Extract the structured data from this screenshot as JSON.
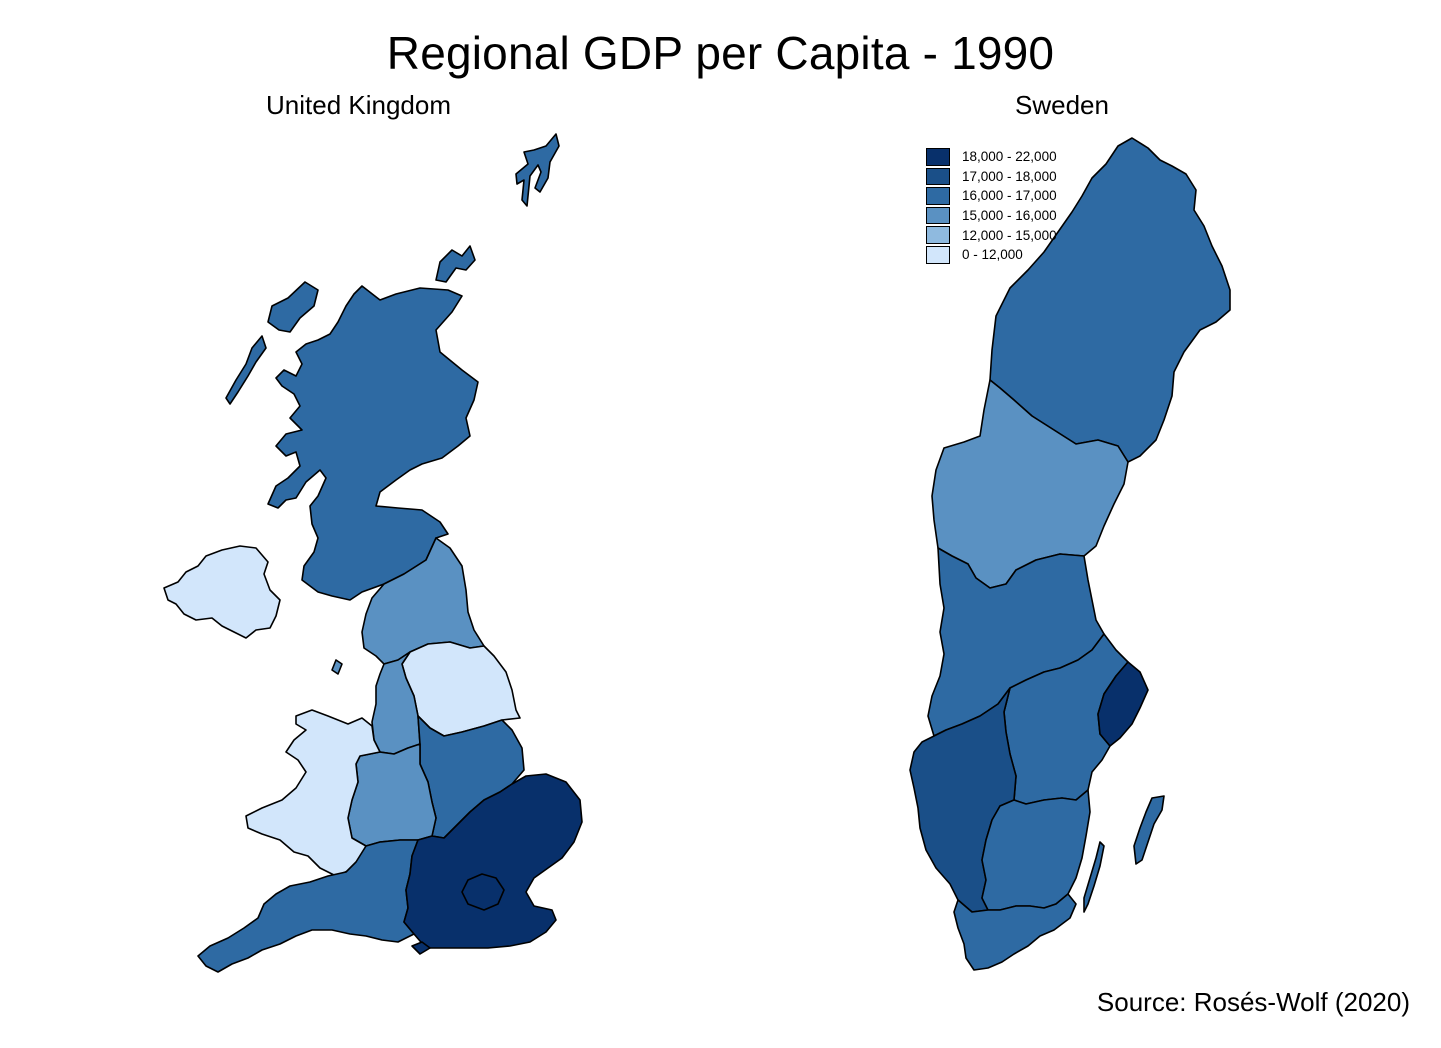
{
  "title": "Regional GDP per Capita - 1990",
  "panels": [
    {
      "label": "United Kingdom"
    },
    {
      "label": "Sweden"
    }
  ],
  "legend": [
    {
      "label": "18,000 - 22,000",
      "color": "#08306b"
    },
    {
      "label": "17,000 - 18,000",
      "color": "#1a4f88"
    },
    {
      "label": "16,000 - 17,000",
      "color": "#2e6aa3"
    },
    {
      "label": "15,000 - 16,000",
      "color": "#5a91c2"
    },
    {
      "label": "12,000 - 15,000",
      "color": "#8fbadf"
    },
    {
      "label": "0 - 12,000",
      "color": "#d2e6fb"
    }
  ],
  "regions": {
    "uk": [
      {
        "name": "Scotland",
        "class": "16,000 - 17,000"
      },
      {
        "name": "Northern Ireland",
        "class": "0 - 12,000"
      },
      {
        "name": "North",
        "class": "15,000 - 16,000"
      },
      {
        "name": "Yorkshire and Humberside",
        "class": "0 - 12,000"
      },
      {
        "name": "North West",
        "class": "15,000 - 16,000"
      },
      {
        "name": "East Midlands",
        "class": "16,000 - 17,000"
      },
      {
        "name": "West Midlands",
        "class": "15,000 - 16,000"
      },
      {
        "name": "Wales",
        "class": "0 - 12,000"
      },
      {
        "name": "South West",
        "class": "16,000 - 17,000"
      },
      {
        "name": "South East",
        "class": "18,000 - 22,000"
      }
    ],
    "sweden": [
      {
        "name": "Upper Norrland",
        "class": "16,000 - 17,000"
      },
      {
        "name": "Middle Norrland",
        "class": "15,000 - 16,000"
      },
      {
        "name": "North Middle Sweden",
        "class": "16,000 - 17,000"
      },
      {
        "name": "East Middle Sweden",
        "class": "16,000 - 17,000"
      },
      {
        "name": "Stockholm",
        "class": "18,000 - 22,000"
      },
      {
        "name": "West Sweden",
        "class": "17,000 - 18,000"
      },
      {
        "name": "Småland and islands",
        "class": "16,000 - 17,000"
      },
      {
        "name": "South Sweden",
        "class": "16,000 - 17,000"
      }
    ]
  },
  "source": "Source: Rosés-Wolf (2020)"
}
